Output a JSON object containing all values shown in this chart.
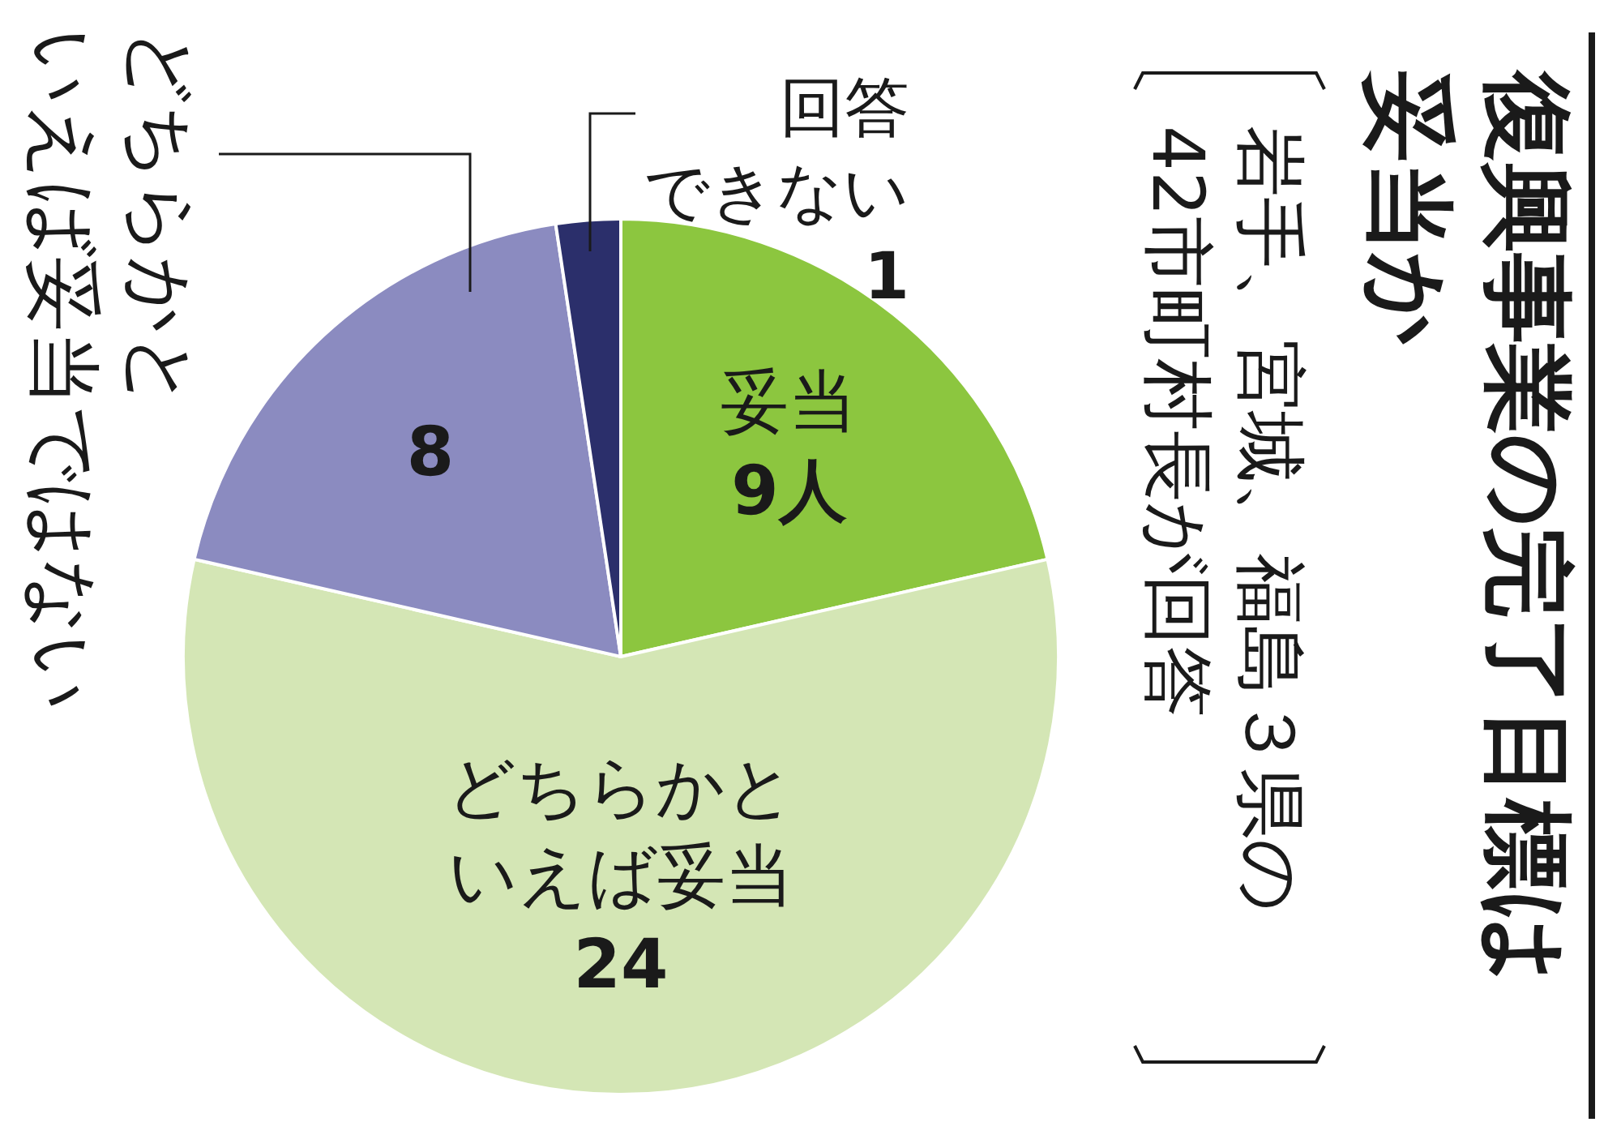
{
  "chart_data": {
    "type": "pie",
    "title": "復興事業の完了目標は妥当か",
    "subtitle": "岩手、宮城、福島３県の42市町村長が回答",
    "categories": [
      "妥当",
      "どちらかといえば妥当",
      "どちらかといえば妥当ではない",
      "回答できない"
    ],
    "values": [
      9,
      24,
      8,
      1
    ],
    "colors": [
      "#8cc63f",
      "#d4e6b5",
      "#8b8bc0",
      "#2b2f6b"
    ],
    "value_labels": [
      "9人",
      "24",
      "8",
      "1"
    ]
  }
}
